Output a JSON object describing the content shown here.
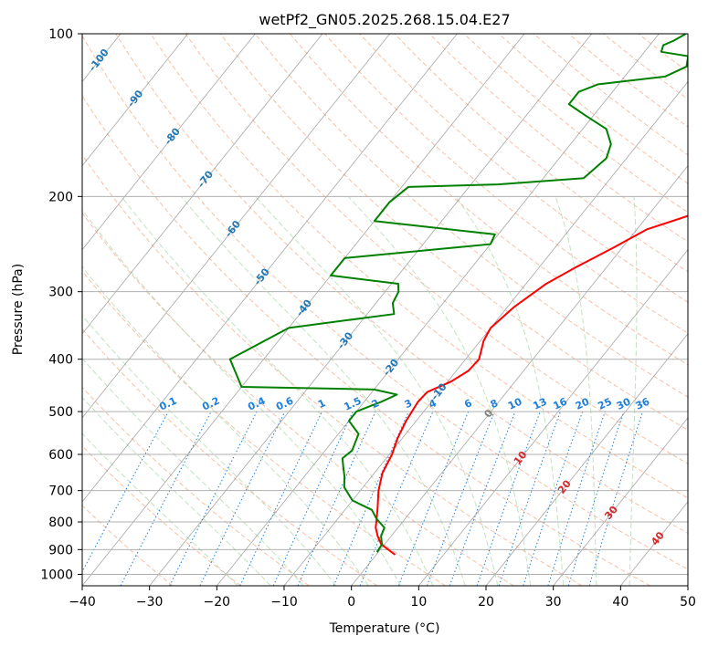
{
  "chart_data": {
    "type": "line",
    "title": "wetPf2_GN05.2025.268.15.04.E27",
    "xlabel": "Temperature (°C)",
    "ylabel": "Pressure (hPa)",
    "xlim": [
      -40,
      50
    ],
    "ylim": [
      1050,
      100
    ],
    "y_scale": "log",
    "x_ticks": [
      "−40",
      "−30",
      "−20",
      "−10",
      "0",
      "10",
      "20",
      "30",
      "40",
      "50"
    ],
    "x_tick_values": [
      -40,
      -30,
      -20,
      -10,
      0,
      10,
      20,
      30,
      40,
      50
    ],
    "y_ticks": [
      "100",
      "200",
      "300",
      "400",
      "500",
      "600",
      "700",
      "800",
      "900",
      "1000"
    ],
    "y_tick_values": [
      100,
      200,
      300,
      400,
      500,
      600,
      700,
      800,
      900,
      1000
    ],
    "grid": true,
    "colors": {
      "temperature": "#ff0000",
      "dewpoint": "#008000",
      "dry_adiabats": "#f4a582",
      "moist_adiabats": "#a6d7a6",
      "mixing_ratio": "#1e7fd9",
      "isotherms": "#808080",
      "isotherm_labels": "#1f77b4",
      "theta_labels": "#d62728"
    },
    "series": [
      {
        "values": [
          {
            "p": 920,
            "t": 2.8
          },
          {
            "p": 880,
            "t": -0.5
          },
          {
            "p": 850,
            "t": -2.0
          },
          {
            "p": 820,
            "t": -3.3
          },
          {
            "p": 790,
            "t": -4.2
          },
          {
            "p": 750,
            "t": -5.5
          },
          {
            "p": 700,
            "t": -7.3
          },
          {
            "p": 650,
            "t": -8.8
          },
          {
            "p": 600,
            "t": -9.6
          },
          {
            "p": 560,
            "t": -10.7
          },
          {
            "p": 520,
            "t": -11.5
          },
          {
            "p": 480,
            "t": -12.0
          },
          {
            "p": 460,
            "t": -11.8
          },
          {
            "p": 440,
            "t": -9.5
          },
          {
            "p": 420,
            "t": -8.2
          },
          {
            "p": 400,
            "t": -8.0
          },
          {
            "p": 370,
            "t": -9.5
          },
          {
            "p": 350,
            "t": -10.0
          },
          {
            "p": 320,
            "t": -9.0
          },
          {
            "p": 290,
            "t": -7.0
          },
          {
            "p": 270,
            "t": -4.5
          },
          {
            "p": 250,
            "t": -1.5
          },
          {
            "p": 230,
            "t": 1.5
          },
          {
            "p": 220,
            "t": 5.0
          },
          {
            "p": 210,
            "t": 8.5
          },
          {
            "p": 200,
            "t": 10.5
          },
          {
            "p": 185,
            "t": 12.5
          },
          {
            "p": 170,
            "t": 16.0
          },
          {
            "p": 155,
            "t": 21.0
          },
          {
            "p": 140,
            "t": 27.0
          },
          {
            "p": 125,
            "t": 32.0
          },
          {
            "p": 115,
            "t": 35.0
          },
          {
            "p": 108,
            "t": 40.0
          },
          {
            "p": 100,
            "t": 50.0
          }
        ]
      },
      {
        "values": [
          {
            "p": 910,
            "t": -0.2
          },
          {
            "p": 880,
            "t": -0.4
          },
          {
            "p": 850,
            "t": -1.5
          },
          {
            "p": 820,
            "t": -2.0
          },
          {
            "p": 790,
            "t": -4.2
          },
          {
            "p": 760,
            "t": -6.0
          },
          {
            "p": 730,
            "t": -10.0
          },
          {
            "p": 690,
            "t": -12.8
          },
          {
            "p": 660,
            "t": -14.0
          },
          {
            "p": 630,
            "t": -15.5
          },
          {
            "p": 610,
            "t": -16.5
          },
          {
            "p": 590,
            "t": -16.0
          },
          {
            "p": 570,
            "t": -16.5
          },
          {
            "p": 550,
            "t": -17.0
          },
          {
            "p": 520,
            "t": -20.0
          },
          {
            "p": 500,
            "t": -20.0
          },
          {
            "p": 480,
            "t": -17.5
          },
          {
            "p": 465,
            "t": -16.0
          },
          {
            "p": 455,
            "t": -20.0
          },
          {
            "p": 450,
            "t": -40.0
          },
          {
            "p": 400,
            "t": -45.0
          },
          {
            "p": 350,
            "t": -40.0
          },
          {
            "p": 330,
            "t": -26.0
          },
          {
            "p": 315,
            "t": -27.5
          },
          {
            "p": 300,
            "t": -28.0
          },
          {
            "p": 290,
            "t": -29.0
          },
          {
            "p": 280,
            "t": -40.0
          },
          {
            "p": 260,
            "t": -40.0
          },
          {
            "p": 245,
            "t": -20.0
          },
          {
            "p": 235,
            "t": -20.5
          },
          {
            "p": 222,
            "t": -40.0
          },
          {
            "p": 205,
            "t": -40.0
          },
          {
            "p": 192,
            "t": -39.0
          },
          {
            "p": 190,
            "t": -26.0
          },
          {
            "p": 185,
            "t": -14.0
          },
          {
            "p": 170,
            "t": -13.0
          },
          {
            "p": 160,
            "t": -14.0
          },
          {
            "p": 150,
            "t": -16.5
          },
          {
            "p": 142,
            "t": -21.0
          },
          {
            "p": 135,
            "t": -25.0
          },
          {
            "p": 128,
            "t": -25.0
          },
          {
            "p": 124,
            "t": -23.0
          },
          {
            "p": 120,
            "t": -14.0
          },
          {
            "p": 115,
            "t": -12.0
          },
          {
            "p": 110,
            "t": -13.0
          },
          {
            "p": 108,
            "t": -17.5
          },
          {
            "p": 105,
            "t": -18.0
          },
          {
            "p": 103,
            "t": -17.0
          },
          {
            "p": 100,
            "t": -16.0
          }
        ]
      }
    ],
    "isotherm_labels": [
      {
        "text": "-100",
        "t": -100
      },
      {
        "text": "-90",
        "t": -90
      },
      {
        "text": "-80",
        "t": -80
      },
      {
        "text": "-70",
        "t": -70
      },
      {
        "text": "-60",
        "t": -60
      },
      {
        "text": "-50",
        "t": -50
      },
      {
        "text": "-40",
        "t": -40
      },
      {
        "text": "-30",
        "t": -30
      },
      {
        "text": "-20",
        "t": -20
      },
      {
        "text": "-10",
        "t": -10
      },
      {
        "text": "0",
        "t": 0
      },
      {
        "text": "10",
        "t": 10
      },
      {
        "text": "20",
        "t": 20
      },
      {
        "text": "30",
        "t": 30
      },
      {
        "text": "40",
        "t": 40
      }
    ],
    "mixing_ratio_labels": [
      "0.1",
      "0.2",
      "0.4",
      "0.6",
      "1",
      "1.5",
      "2",
      "3",
      "4",
      "6",
      "8",
      "10",
      "13",
      "16",
      "20",
      "25",
      "30",
      "36"
    ],
    "mixing_ratio_values": [
      0.1,
      0.2,
      0.4,
      0.6,
      1,
      1.5,
      2,
      3,
      4,
      6,
      8,
      10,
      13,
      16,
      20,
      25,
      30,
      36
    ]
  }
}
